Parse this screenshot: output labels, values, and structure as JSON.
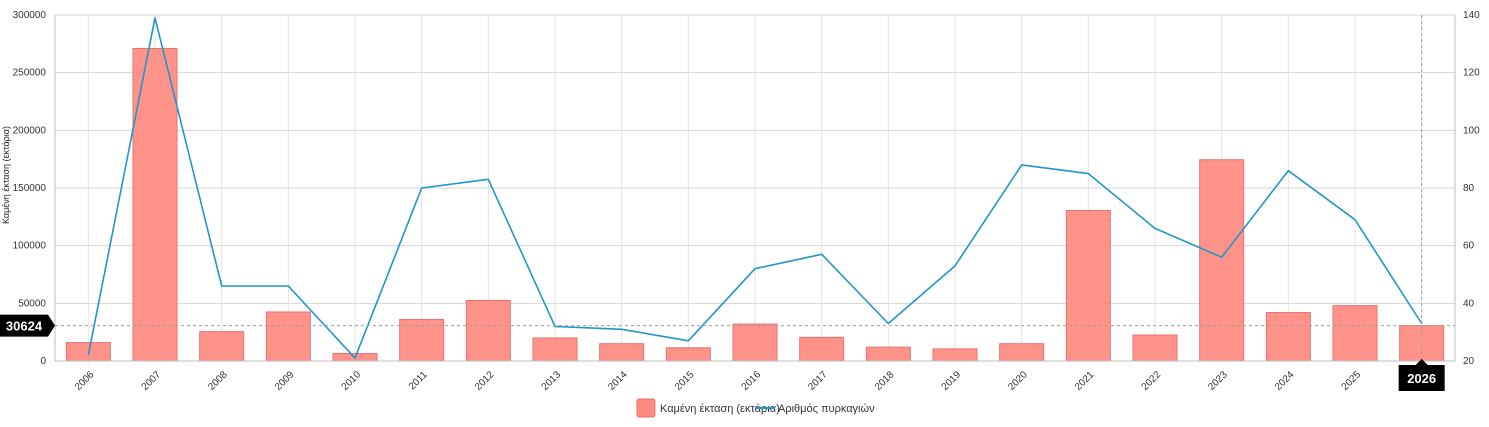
{
  "chart_data": {
    "type": "bar",
    "categories": [
      "2006",
      "2007",
      "2008",
      "2009",
      "2010",
      "2011",
      "2012",
      "2013",
      "2014",
      "2015",
      "2016",
      "2017",
      "2018",
      "2019",
      "2020",
      "2021",
      "2022",
      "2023",
      "2024",
      "2025",
      "2026"
    ],
    "series": [
      {
        "name": "Καμένη έκταση (εκτάρια)",
        "type": "bar",
        "axis": "left",
        "color": "#ff8a80",
        "values": [
          16000,
          271000,
          25500,
          42500,
          6500,
          36000,
          52500,
          20000,
          15000,
          11500,
          32000,
          20500,
          12000,
          10500,
          15000,
          130500,
          22500,
          174500,
          42000,
          48000,
          30624
        ]
      },
      {
        "name": "Αριθμός πυρκαγιών",
        "type": "line",
        "axis": "right",
        "color": "#2196c9",
        "values": [
          22,
          139,
          46,
          46,
          21,
          80,
          83,
          32,
          31,
          27,
          52,
          57,
          33,
          53,
          88,
          85,
          66,
          56,
          86,
          69,
          33
        ]
      }
    ],
    "ylabel": "Καμένη έκταση (εκτάρια)",
    "ylim": [
      0,
      300000
    ],
    "y_ticks": [
      0,
      50000,
      100000,
      150000,
      200000,
      250000,
      300000
    ],
    "y2lim": [
      20,
      140
    ],
    "y2_ticks": [
      20,
      40,
      60,
      80,
      100,
      120,
      140
    ],
    "grid": true,
    "legend_position": "bottom-center",
    "crosshair": {
      "category": "2026",
      "y_value_label": "30624",
      "x_value_label": "2026"
    }
  }
}
